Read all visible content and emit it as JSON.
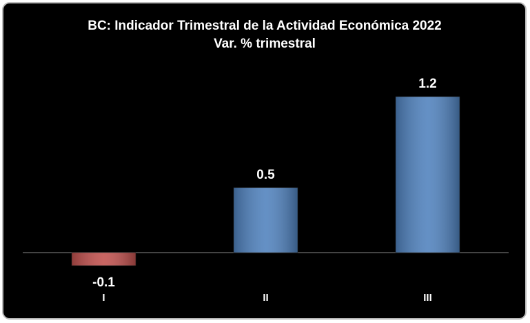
{
  "chart_data": {
    "type": "bar",
    "title": "BC: Indicador Trimestral de la Actividad Económica 2022",
    "subtitle": "Var. % trimestral",
    "categories": [
      "I",
      "II",
      "III"
    ],
    "values": [
      -0.1,
      0.5,
      1.2
    ],
    "colors": [
      "#c0504d",
      "#4f81bd",
      "#4f81bd"
    ],
    "grid": false
  }
}
